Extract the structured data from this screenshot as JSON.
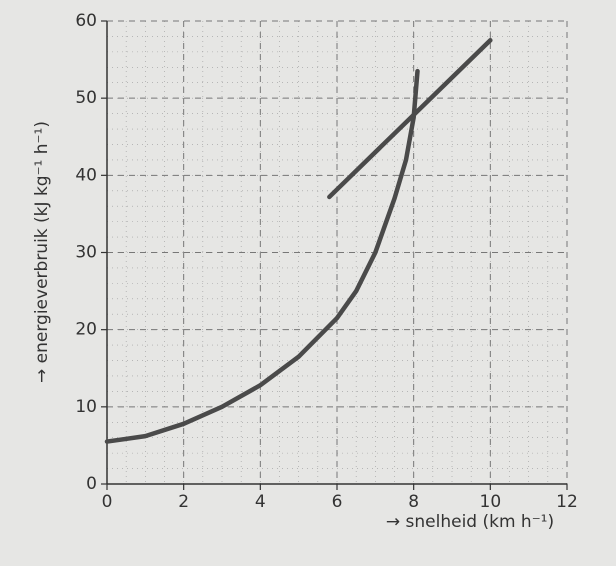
{
  "chart_data": {
    "type": "line",
    "xlabel": "→ snelheid (km h⁻¹)",
    "ylabel": "→ energieverbruik (kJ kg⁻¹ h⁻¹)",
    "xlim": [
      0,
      12
    ],
    "xticks": [
      0,
      2,
      4,
      6,
      8,
      10,
      12
    ],
    "ylim": [
      0,
      60
    ],
    "yticks": [
      0,
      10,
      20,
      30,
      40,
      50,
      60
    ],
    "grid": true,
    "series": [
      {
        "color": "#4a4a4a",
        "x": [
          0,
          1,
          2,
          3,
          4,
          5,
          6,
          6.5,
          7,
          7.5,
          7.8,
          8,
          8.1
        ],
        "values": [
          5.5,
          6.2,
          7.8,
          10,
          12.8,
          16.5,
          21.5,
          25,
          30,
          37,
          42,
          47.5,
          53.5
        ]
      },
      {
        "color": "#4a4a4a",
        "x": [
          5.8,
          10
        ],
        "values": [
          37.2,
          57.5
        ]
      }
    ]
  }
}
